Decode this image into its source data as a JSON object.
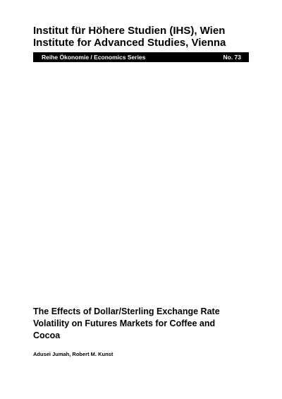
{
  "header": {
    "institute_line_1": "Institut für Höhere Studien (IHS), Wien",
    "institute_line_2": "Institute for Advanced Studies, Vienna"
  },
  "series_bar": {
    "series_name": "Reihe Ökonomie / Economics Series",
    "number": "No. 73"
  },
  "paper": {
    "title_lines": [
      "The Effects of Dollar/Sterling Exchange Rate",
      "Volatility on Futures Markets for Coffee and",
      "Cocoa"
    ],
    "authors": "Adusei Jumah, Robert M. Kunst"
  }
}
